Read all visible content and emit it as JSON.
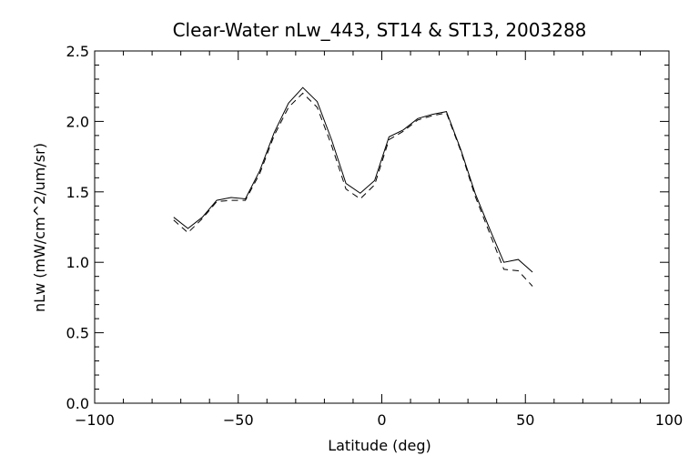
{
  "chart_data": {
    "type": "line",
    "title": "Clear-Water nLw_443, ST14 & ST13, 2003288",
    "xlabel": "Latitude (deg)",
    "ylabel": "nLw (mW/cm^2/um/sr)",
    "xlim": [
      -100,
      100
    ],
    "ylim": [
      0.0,
      2.5
    ],
    "x_ticks": [
      -100,
      -50,
      0,
      50,
      100
    ],
    "x_tick_labels": [
      "−100",
      "−50",
      "0",
      "50",
      "100"
    ],
    "y_ticks": [
      0.0,
      0.5,
      1.0,
      1.5,
      2.0,
      2.5
    ],
    "y_tick_labels": [
      "0.0",
      "0.5",
      "1.0",
      "1.5",
      "2.0",
      "2.5"
    ],
    "grid": false,
    "legend": "none",
    "series": [
      {
        "style": "solid",
        "color": "#000000",
        "x": [
          -72.5,
          -67.5,
          -62.5,
          -57.5,
          -52.5,
          -47.5,
          -42.5,
          -37.5,
          -32.5,
          -27.5,
          -22.5,
          -17.5,
          -12.5,
          -7.5,
          -2.5,
          2.5,
          7.5,
          12.5,
          17.5,
          22.5,
          27.5,
          32.5,
          37.5,
          42.5,
          47.5,
          52.5
        ],
        "y": [
          1.32,
          1.24,
          1.32,
          1.44,
          1.46,
          1.45,
          1.65,
          1.92,
          2.13,
          2.24,
          2.14,
          1.87,
          1.56,
          1.49,
          1.58,
          1.89,
          1.94,
          2.02,
          2.05,
          2.07,
          1.8,
          1.49,
          1.24,
          1.0,
          1.02,
          0.93
        ]
      },
      {
        "style": "dashed",
        "color": "#000000",
        "x": [
          -72.5,
          -67.5,
          -62.5,
          -57.5,
          -52.5,
          -47.5,
          -42.5,
          -37.5,
          -32.5,
          -27.5,
          -22.5,
          -17.5,
          -12.5,
          -7.5,
          -2.5,
          2.5,
          7.5,
          12.5,
          17.5,
          22.5,
          27.5,
          32.5,
          37.5,
          42.5,
          47.5,
          52.5
        ],
        "y": [
          1.3,
          1.21,
          1.31,
          1.43,
          1.44,
          1.44,
          1.63,
          1.9,
          2.1,
          2.2,
          2.1,
          1.83,
          1.52,
          1.45,
          1.55,
          1.87,
          1.93,
          2.01,
          2.04,
          2.06,
          1.79,
          1.47,
          1.21,
          0.95,
          0.94,
          0.83
        ]
      }
    ]
  }
}
